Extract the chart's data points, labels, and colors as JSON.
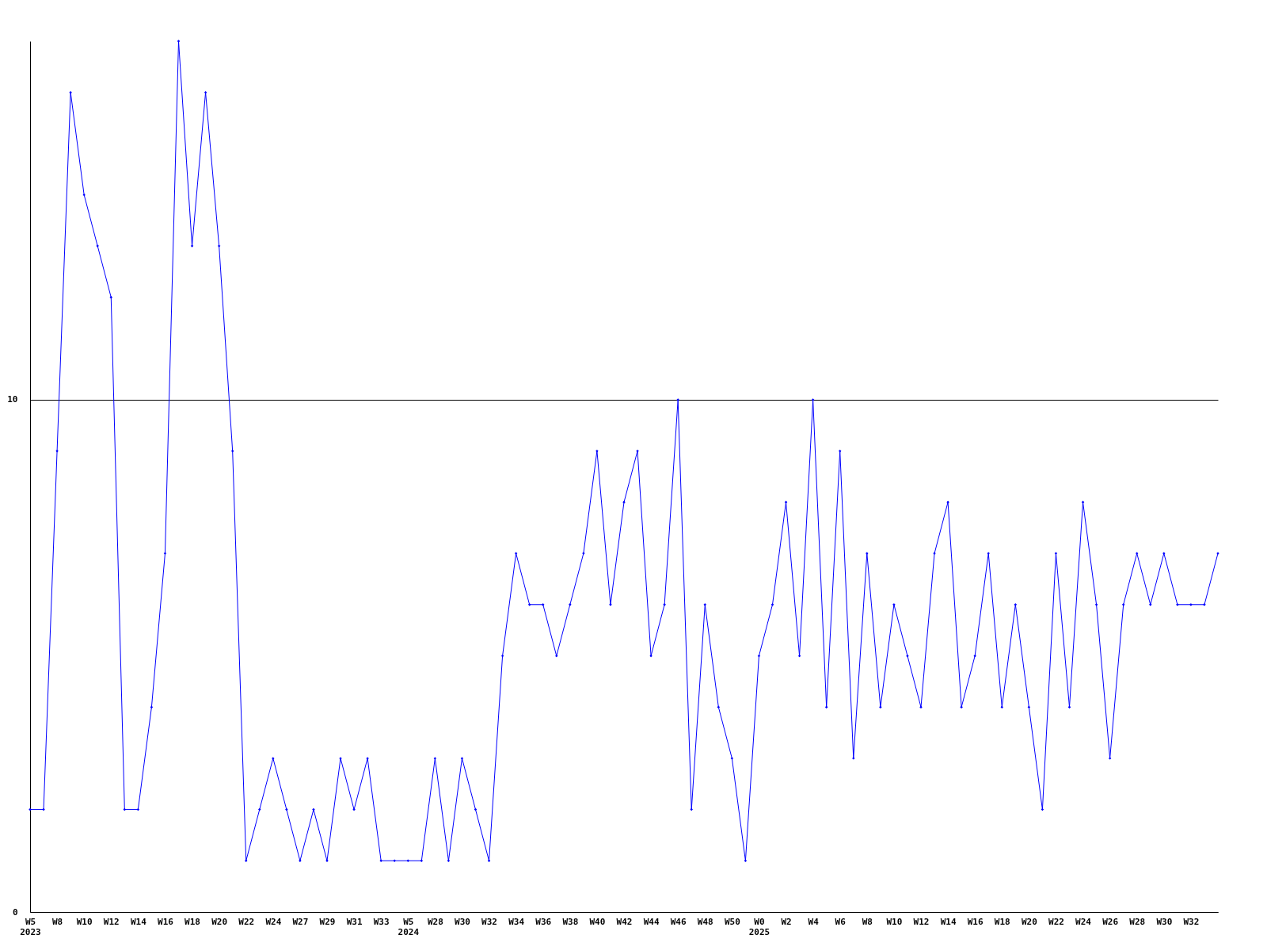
{
  "chart_data": {
    "type": "line",
    "categories": [
      "W5\n2023",
      null,
      "W8",
      null,
      "W10",
      null,
      "W12",
      null,
      "W14",
      null,
      "W16",
      null,
      "W18",
      null,
      "W20",
      null,
      "W22",
      null,
      "W24",
      null,
      "W27",
      null,
      "W29",
      null,
      "W31",
      null,
      "W33",
      null,
      "W5\n2024",
      null,
      "W28",
      null,
      "W30",
      null,
      "W32",
      null,
      "W34",
      null,
      "W36",
      null,
      "W38",
      null,
      "W40",
      null,
      "W42",
      null,
      "W44",
      null,
      "W46",
      null,
      "W48",
      null,
      "W50",
      null,
      "W0\n2025",
      null,
      "W2",
      null,
      "W4",
      null,
      "W6",
      null,
      "W8",
      null,
      "W10",
      null,
      "W12",
      null,
      "W14",
      null,
      "W16",
      null,
      "W18",
      null,
      "W20",
      null,
      "W22",
      null,
      "W24",
      null,
      "W26",
      null,
      "W28",
      null,
      "W30",
      null,
      "W32",
      null,
      null
    ],
    "series": [
      {
        "color": "#0000ff",
        "values": [
          2,
          2,
          9,
          16,
          14,
          13,
          12,
          2,
          2,
          4,
          7,
          17,
          13,
          16,
          13,
          9,
          1,
          2,
          3,
          2,
          1,
          2,
          1,
          3,
          2,
          3,
          1,
          1,
          1,
          1,
          3,
          1,
          3,
          2,
          1,
          5,
          7,
          6,
          6,
          5,
          6,
          7,
          9,
          6,
          8,
          9,
          5,
          6,
          10,
          2,
          6,
          4,
          3,
          1,
          5,
          6,
          8,
          5,
          10,
          4,
          9,
          3,
          7,
          4,
          6,
          5,
          4,
          7,
          8,
          4,
          5,
          7,
          4,
          6,
          4,
          2,
          7,
          4,
          8,
          6,
          3,
          6,
          7,
          6,
          7,
          6,
          6,
          6,
          7
        ]
      }
    ],
    "ylim": [
      0,
      17
    ],
    "yticks": [
      0,
      10
    ],
    "grid": "y",
    "marker": "diamond",
    "line_style": "solid",
    "legend": false
  }
}
